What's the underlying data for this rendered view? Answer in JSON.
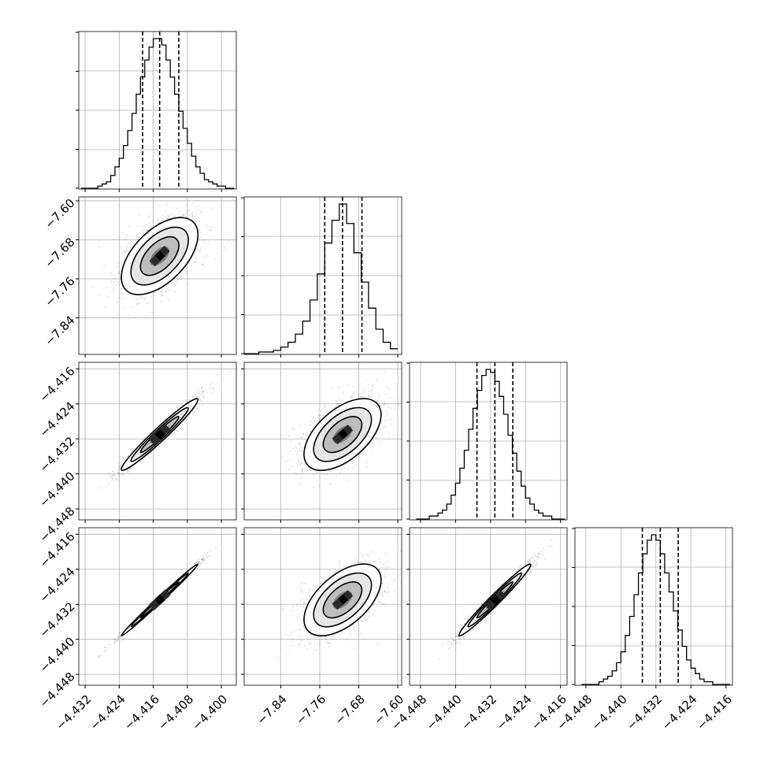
{
  "chart_data": {
    "type": "corner",
    "grid": true,
    "variables": [
      {
        "index": 0,
        "axis_range": [
          -4.4335,
          -4.3965
        ],
        "ticks": [
          "−4.432",
          "−4.424",
          "−4.416",
          "−4.408",
          "−4.400"
        ],
        "tick_values": [
          -4.432,
          -4.424,
          -4.416,
          -4.408,
          -4.4
        ],
        "quantiles": [
          -4.4185,
          -4.4145,
          -4.41
        ],
        "hist_bins": [
          -4.433,
          -4.432,
          -4.431,
          -4.43,
          -4.429,
          -4.428,
          -4.427,
          -4.426,
          -4.425,
          -4.424,
          -4.423,
          -4.422,
          -4.421,
          -4.42,
          -4.419,
          -4.418,
          -4.417,
          -4.416,
          -4.415,
          -4.414,
          -4.413,
          -4.412,
          -4.411,
          -4.41,
          -4.409,
          -4.408,
          -4.407,
          -4.406,
          -4.405,
          -4.404,
          -4.403,
          -4.402,
          -4.401,
          -4.4,
          -4.399,
          -4.398,
          -4.397
        ],
        "hist_counts": [
          0,
          0,
          0,
          0,
          1,
          2,
          3,
          6,
          10,
          14,
          20,
          27,
          35,
          44,
          52,
          60,
          66,
          70,
          70,
          67,
          60,
          52,
          44,
          36,
          28,
          21,
          15,
          10,
          7,
          4,
          3,
          2,
          1,
          1,
          0,
          0
        ]
      },
      {
        "index": 1,
        "axis_range": [
          -7.915,
          -7.592
        ],
        "ticks": [
          "−7.84",
          "−7.76",
          "−7.68",
          "−7.60"
        ],
        "tick_values": [
          -7.84,
          -7.76,
          -7.68,
          -7.6
        ],
        "quantiles": [
          -7.7498,
          -7.7133,
          -7.6735
        ],
        "hist_bins": [
          -7.915,
          -7.9,
          -7.885,
          -7.87,
          -7.855,
          -7.84,
          -7.825,
          -7.81,
          -7.795,
          -7.78,
          -7.765,
          -7.75,
          -7.735,
          -7.72,
          -7.705,
          -7.69,
          -7.675,
          -7.66,
          -7.645,
          -7.63,
          -7.615,
          -7.6
        ],
        "hist_counts": [
          0,
          0,
          1,
          1,
          2,
          4,
          7,
          12,
          20,
          33,
          49,
          68,
          82,
          92,
          80,
          62,
          44,
          28,
          15,
          7,
          3
        ]
      },
      {
        "index": 2,
        "axis_range": [
          -4.4505,
          -4.4145
        ],
        "ticks": [
          "−4.448",
          "−4.440",
          "−4.432",
          "−4.424",
          "−4.416"
        ],
        "tick_values": [
          -4.448,
          -4.44,
          -4.432,
          -4.424,
          -4.416
        ],
        "quantiles": [
          -4.4351,
          -4.431,
          -4.4269
        ],
        "hist_bins": [
          -4.449,
          -4.448,
          -4.447,
          -4.446,
          -4.445,
          -4.444,
          -4.443,
          -4.442,
          -4.441,
          -4.44,
          -4.439,
          -4.438,
          -4.437,
          -4.436,
          -4.435,
          -4.434,
          -4.433,
          -4.432,
          -4.431,
          -4.43,
          -4.429,
          -4.428,
          -4.427,
          -4.426,
          -4.425,
          -4.424,
          -4.423,
          -4.422,
          -4.421,
          -4.42,
          -4.419,
          -4.418,
          -4.417,
          -4.416,
          -4.415
        ],
        "hist_counts": [
          0,
          0,
          0,
          1,
          1,
          2,
          3,
          5,
          8,
          12,
          17,
          23,
          30,
          37,
          43,
          48,
          50,
          49,
          46,
          41,
          35,
          28,
          22,
          16,
          11,
          7,
          5,
          3,
          2,
          1,
          1,
          0,
          0,
          0
        ]
      },
      {
        "index": 3,
        "axis_range": [
          -4.4505,
          -4.4145
        ],
        "ticks": [
          "−4.448",
          "−4.440",
          "−4.432",
          "−4.424",
          "−4.416"
        ],
        "tick_values": [
          -4.448,
          -4.44,
          -4.432,
          -4.424,
          -4.416
        ],
        "quantiles": [
          -4.4351,
          -4.431,
          -4.4269
        ],
        "hist_bins": [
          -4.449,
          -4.448,
          -4.447,
          -4.446,
          -4.445,
          -4.444,
          -4.443,
          -4.442,
          -4.441,
          -4.44,
          -4.439,
          -4.438,
          -4.437,
          -4.436,
          -4.435,
          -4.434,
          -4.433,
          -4.432,
          -4.431,
          -4.43,
          -4.429,
          -4.428,
          -4.427,
          -4.426,
          -4.425,
          -4.424,
          -4.423,
          -4.422,
          -4.421,
          -4.42,
          -4.419,
          -4.418,
          -4.417,
          -4.416,
          -4.415
        ],
        "hist_counts": [
          0,
          0,
          0,
          0,
          1,
          2,
          3,
          5,
          8,
          12,
          18,
          25,
          33,
          41,
          48,
          53,
          55,
          53,
          48,
          41,
          34,
          27,
          20,
          14,
          9,
          6,
          4,
          2,
          1,
          1,
          0,
          0,
          0,
          0
        ]
      }
    ],
    "pairs": [
      {
        "x": 0,
        "y": 1,
        "center": [
          -4.4145,
          -7.7133
        ],
        "sigma": [
          0.0045,
          0.0395
        ],
        "correlation": 0.55
      },
      {
        "x": 0,
        "y": 2,
        "center": [
          -4.4145,
          -4.431
        ],
        "sigma": [
          0.0045,
          0.0041
        ],
        "correlation": 0.97
      },
      {
        "x": 1,
        "y": 2,
        "center": [
          -7.7133,
          -4.431
        ],
        "sigma": [
          0.0395,
          0.0041
        ],
        "correlation": 0.55
      },
      {
        "x": 0,
        "y": 3,
        "center": [
          -4.4145,
          -4.431
        ],
        "sigma": [
          0.0045,
          0.0041
        ],
        "correlation": 0.995
      },
      {
        "x": 1,
        "y": 3,
        "center": [
          -7.7133,
          -4.431
        ],
        "sigma": [
          0.0395,
          0.0041
        ],
        "correlation": 0.55
      },
      {
        "x": 2,
        "y": 3,
        "center": [
          -4.431,
          -4.431
        ],
        "sigma": [
          0.0041,
          0.0041
        ],
        "correlation": 0.98
      }
    ]
  }
}
